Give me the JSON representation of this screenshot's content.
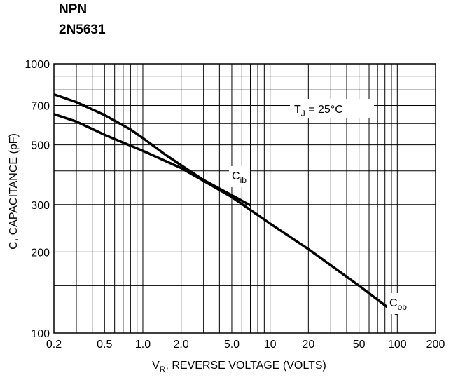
{
  "header": {
    "line1": "NPN",
    "line2": "2N5631"
  },
  "chart_data": {
    "type": "line",
    "title": "",
    "xlabel": {
      "main": "V",
      "sub": "R",
      "rest": ", REVERSE VOLTAGE (VOLTS)"
    },
    "ylabel": "C, CAPACITANCE (pF)",
    "xscale": "log",
    "yscale": "log",
    "xlim": [
      0.2,
      200
    ],
    "ylim": [
      100,
      1000
    ],
    "grid": true,
    "x_ticks": [
      {
        "v": 0.2,
        "label": "0.2"
      },
      {
        "v": 0.5,
        "label": "0.5"
      },
      {
        "v": 1,
        "label": "1.0"
      },
      {
        "v": 2,
        "label": "2.0"
      },
      {
        "v": 5,
        "label": "5.0"
      },
      {
        "v": 10,
        "label": "10"
      },
      {
        "v": 20,
        "label": "20"
      },
      {
        "v": 50,
        "label": "50"
      },
      {
        "v": 100,
        "label": "100"
      },
      {
        "v": 200,
        "label": "200"
      }
    ],
    "y_ticks": [
      {
        "v": 100,
        "label": "100"
      },
      {
        "v": 200,
        "label": "200"
      },
      {
        "v": 300,
        "label": "300"
      },
      {
        "v": 500,
        "label": "500"
      },
      {
        "v": 700,
        "label": "700"
      },
      {
        "v": 1000,
        "label": "1000"
      }
    ],
    "x_grid": [
      0.2,
      0.3,
      0.4,
      0.5,
      0.6,
      0.7,
      0.8,
      0.9,
      1,
      2,
      3,
      4,
      5,
      6,
      7,
      8,
      9,
      10,
      20,
      30,
      40,
      50,
      60,
      70,
      80,
      90,
      100,
      200
    ],
    "y_grid": [
      100,
      150,
      200,
      300,
      400,
      500,
      600,
      700,
      800,
      900,
      1000
    ],
    "series": [
      {
        "name": "Cib",
        "label_main": "C",
        "label_sub": "ib",
        "x": [
          0.2,
          0.3,
          0.5,
          0.8,
          1.0,
          1.5,
          2.0,
          3.0,
          5.0,
          7.0
        ],
        "y": [
          770,
          720,
          645,
          570,
          530,
          460,
          420,
          370,
          325,
          298
        ]
      },
      {
        "name": "Cob",
        "label_main": "C",
        "label_sub": "ob",
        "x": [
          0.2,
          0.3,
          0.5,
          1.0,
          2.0,
          5.0,
          10,
          20,
          50,
          100
        ],
        "y": [
          650,
          610,
          545,
          475,
          410,
          320,
          255,
          205,
          150,
          117
        ]
      }
    ],
    "annotation": {
      "main": "T",
      "sub": "J",
      "rest": " = 25°C"
    }
  }
}
